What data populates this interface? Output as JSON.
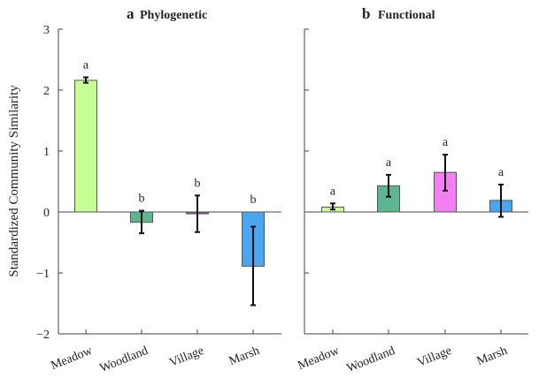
{
  "chart_data": [
    {
      "type": "bar",
      "panel_letter": "a",
      "title": "Phylogenetic",
      "ylabel": "Standardized Community Similarity",
      "xlabel": "",
      "ylim": [
        -2,
        3
      ],
      "yticks": [
        3,
        2,
        1,
        0,
        -1,
        -2
      ],
      "ytick_labels": [
        "3",
        "2",
        "1",
        "0",
        "−1",
        "−2"
      ],
      "categories": [
        "Meadow",
        "Woodland",
        "Village",
        "Marsh"
      ],
      "values": [
        2.16,
        -0.17,
        -0.03,
        -0.89
      ],
      "error_low": [
        2.12,
        -0.35,
        -0.33,
        -1.53
      ],
      "error_high": [
        2.21,
        0.02,
        0.27,
        -0.24
      ],
      "significance_labels": [
        "a",
        "b",
        "b",
        "b"
      ],
      "colors": [
        "#c6ff94",
        "#5db592",
        "#8a4f8f",
        "#4aa6ef"
      ],
      "grid": false
    },
    {
      "type": "bar",
      "panel_letter": "b",
      "title": "Functional",
      "ylabel": "",
      "xlabel": "",
      "ylim": [
        -2,
        3
      ],
      "yticks": [
        3,
        2,
        1,
        0,
        -1,
        -2
      ],
      "ytick_labels": [],
      "categories": [
        "Meadow",
        "Woodland",
        "Village",
        "Marsh"
      ],
      "values": [
        0.08,
        0.43,
        0.65,
        0.19
      ],
      "error_low": [
        0.04,
        0.25,
        0.35,
        -0.08
      ],
      "error_high": [
        0.14,
        0.61,
        0.94,
        0.45
      ],
      "significance_labels": [
        "a",
        "a",
        "a",
        "a"
      ],
      "colors": [
        "#c6ff94",
        "#5db592",
        "#f47ff2",
        "#4aa6ef"
      ],
      "grid": false
    }
  ]
}
